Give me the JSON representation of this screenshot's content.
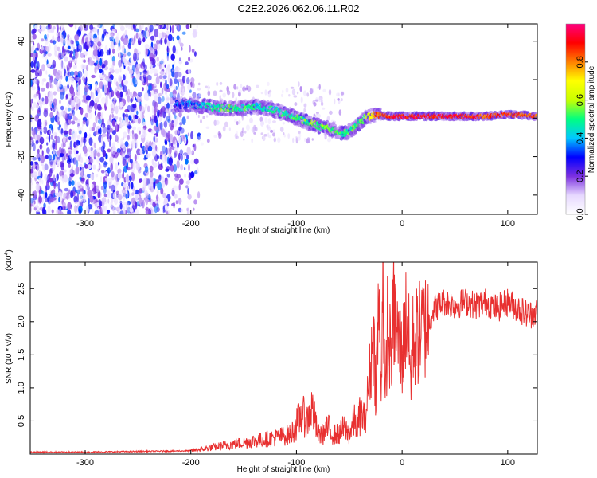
{
  "title": "C2E2.2026.062.06.11.R02",
  "chart_data": [
    {
      "type": "heatmap",
      "name": "spectrogram",
      "xlabel": "Height of straight line (km)",
      "ylabel": "Frequency (Hz)",
      "xlim": [
        -352,
        128
      ],
      "ylim": [
        -50,
        49
      ],
      "xticks": [
        -300,
        -200,
        -100,
        0,
        100
      ],
      "yticks": [
        -40,
        -20,
        0,
        20,
        40
      ],
      "colorbar": {
        "label": "Normalized spectral amplitude",
        "range": [
          0,
          1
        ],
        "ticks": [
          "0.0",
          "0.2",
          "0.4",
          "0.6",
          "0.8"
        ],
        "colors": [
          "#ffffff",
          "#e6d8ff",
          "#7b2fe0",
          "#0000ff",
          "#00c8ff",
          "#00ff80",
          "#c8ff00",
          "#ffff00",
          "#ff8000",
          "#ff0000",
          "#ff0080"
        ]
      },
      "signal_track": {
        "x": [
          -215,
          -200,
          -185,
          -170,
          -155,
          -140,
          -125,
          -110,
          -95,
          -80,
          -65,
          -55,
          -45,
          -35,
          -25,
          -15,
          0,
          20,
          40,
          60,
          80,
          100,
          128
        ],
        "freq": [
          7,
          7,
          6,
          5,
          5,
          6,
          5,
          2,
          -1,
          -4,
          -6,
          -8,
          -5,
          0,
          2,
          1,
          1,
          1,
          1,
          1,
          1,
          2,
          1
        ],
        "amplitude": [
          0.3,
          0.35,
          0.45,
          0.5,
          0.5,
          0.45,
          0.45,
          0.5,
          0.5,
          0.55,
          0.5,
          0.5,
          0.5,
          0.55,
          0.8,
          0.85,
          0.9,
          0.9,
          0.9,
          0.9,
          0.85,
          0.85,
          0.85
        ]
      },
      "noise_region_x": [
        -352,
        -195
      ]
    },
    {
      "type": "line",
      "name": "snr",
      "xlabel": "Height of straight line (km)",
      "ylabel": "SNR (10 * v/v)",
      "exponent_label": "(x10",
      "exponent_power": "4",
      "exponent_close": ")",
      "xlim": [
        -352,
        128
      ],
      "ylim": [
        0,
        2.9
      ],
      "xticks": [
        -300,
        -200,
        -100,
        0,
        100
      ],
      "yticks": [
        "0.5",
        "1.0",
        "1.5",
        "2.0",
        "2.5"
      ],
      "series": [
        {
          "name": "SNR",
          "color": "#e83030",
          "x": [
            -352,
            -300,
            -250,
            -200,
            -180,
            -160,
            -140,
            -120,
            -105,
            -100,
            -95,
            -90,
            -85,
            -80,
            -75,
            -70,
            -65,
            -60,
            -55,
            -50,
            -45,
            -42,
            -40,
            -38,
            -35,
            -30,
            -27,
            -25,
            -22,
            -20,
            -18,
            -16,
            -14,
            -12,
            -10,
            -8,
            -5,
            0,
            5,
            8,
            10,
            15,
            20,
            25,
            30,
            40,
            50,
            60,
            70,
            80,
            90,
            100,
            110,
            120,
            128
          ],
          "y": [
            0.03,
            0.03,
            0.04,
            0.05,
            0.1,
            0.15,
            0.2,
            0.25,
            0.3,
            0.45,
            0.6,
            0.5,
            0.7,
            0.3,
            0.3,
            0.4,
            0.3,
            0.3,
            0.4,
            0.3,
            0.5,
            0.4,
            0.6,
            0.6,
            0.5,
            1.3,
            1.8,
            1.0,
            2.3,
            1.0,
            2.9,
            0.6,
            2.0,
            1.6,
            1.6,
            2.2,
            1.8,
            1.5,
            2.2,
            1.1,
            1.7,
            1.8,
            1.9,
            2.0,
            2.2,
            2.3,
            2.25,
            2.3,
            2.25,
            2.3,
            2.2,
            2.3,
            2.2,
            2.1,
            2.15
          ]
        }
      ]
    }
  ]
}
